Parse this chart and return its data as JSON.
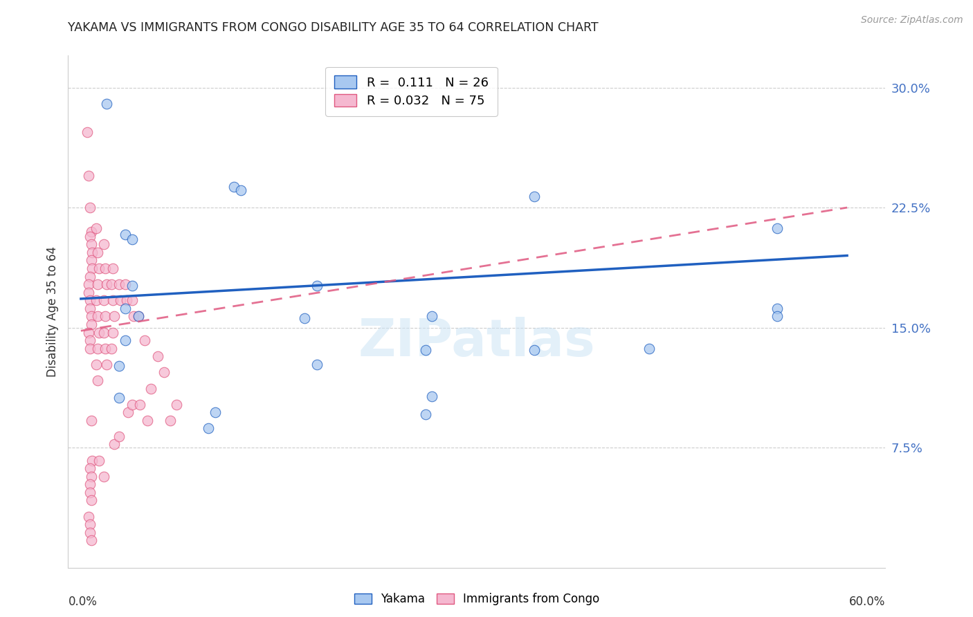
{
  "title": "YAKAMA VS IMMIGRANTS FROM CONGO DISABILITY AGE 35 TO 64 CORRELATION CHART",
  "source": "Source: ZipAtlas.com",
  "ylabel": "Disability Age 35 to 64",
  "yticks": [
    0.0,
    0.075,
    0.15,
    0.225,
    0.3
  ],
  "ytick_labels": [
    "",
    "7.5%",
    "15.0%",
    "22.5%",
    "30.0%"
  ],
  "xticks": [
    0.0,
    0.1,
    0.2,
    0.3,
    0.4,
    0.5,
    0.6
  ],
  "xlim": [
    -0.01,
    0.63
  ],
  "ylim": [
    0.0,
    0.32
  ],
  "legend_r1": "R =  0.111",
  "legend_n1": "N = 26",
  "legend_r2": "R = 0.032",
  "legend_n2": "N = 75",
  "yakama_color": "#a8c8f0",
  "congo_color": "#f5b8d0",
  "line_yakama_color": "#2060c0",
  "line_congo_color": "#e05880",
  "watermark": "ZIPatlas",
  "yakama_x": [
    0.02,
    0.12,
    0.125,
    0.035,
    0.04,
    0.355,
    0.04,
    0.045,
    0.185,
    0.175,
    0.275,
    0.27,
    0.355,
    0.545,
    0.545,
    0.035,
    0.03,
    0.03,
    0.185,
    0.275,
    0.27,
    0.445,
    0.105,
    0.1,
    0.545,
    0.035
  ],
  "yakama_y": [
    0.29,
    0.238,
    0.236,
    0.208,
    0.205,
    0.232,
    0.176,
    0.157,
    0.176,
    0.156,
    0.157,
    0.136,
    0.136,
    0.212,
    0.162,
    0.142,
    0.126,
    0.106,
    0.127,
    0.107,
    0.096,
    0.137,
    0.097,
    0.087,
    0.157,
    0.162
  ],
  "congo_x": [
    0.005,
    0.006,
    0.007,
    0.008,
    0.007,
    0.008,
    0.009,
    0.008,
    0.009,
    0.007,
    0.006,
    0.006,
    0.007,
    0.007,
    0.008,
    0.008,
    0.006,
    0.007,
    0.007,
    0.008,
    0.009,
    0.007,
    0.008,
    0.007,
    0.007,
    0.008,
    0.006,
    0.007,
    0.007,
    0.008,
    0.012,
    0.013,
    0.014,
    0.013,
    0.012,
    0.013,
    0.014,
    0.013,
    0.012,
    0.013,
    0.014,
    0.018,
    0.019,
    0.02,
    0.018,
    0.019,
    0.018,
    0.019,
    0.02,
    0.018,
    0.025,
    0.024,
    0.025,
    0.026,
    0.025,
    0.024,
    0.026,
    0.03,
    0.031,
    0.03,
    0.035,
    0.036,
    0.037,
    0.04,
    0.041,
    0.04,
    0.045,
    0.046,
    0.05,
    0.052,
    0.055,
    0.06,
    0.065,
    0.07,
    0.075
  ],
  "congo_y": [
    0.272,
    0.245,
    0.225,
    0.21,
    0.207,
    0.202,
    0.197,
    0.192,
    0.187,
    0.182,
    0.177,
    0.172,
    0.167,
    0.162,
    0.157,
    0.152,
    0.147,
    0.142,
    0.137,
    0.092,
    0.067,
    0.062,
    0.057,
    0.052,
    0.047,
    0.042,
    0.032,
    0.027,
    0.022,
    0.017,
    0.212,
    0.197,
    0.187,
    0.177,
    0.167,
    0.157,
    0.147,
    0.137,
    0.127,
    0.117,
    0.067,
    0.202,
    0.187,
    0.177,
    0.167,
    0.157,
    0.147,
    0.137,
    0.127,
    0.057,
    0.187,
    0.177,
    0.167,
    0.157,
    0.147,
    0.137,
    0.077,
    0.177,
    0.167,
    0.082,
    0.177,
    0.167,
    0.097,
    0.167,
    0.157,
    0.102,
    0.157,
    0.102,
    0.142,
    0.092,
    0.112,
    0.132,
    0.122,
    0.092,
    0.102
  ],
  "yakama_line_x": [
    0.0,
    0.6
  ],
  "yakama_line_y": [
    0.168,
    0.195
  ],
  "congo_line_x": [
    0.0,
    0.6
  ],
  "congo_line_y": [
    0.148,
    0.225
  ]
}
